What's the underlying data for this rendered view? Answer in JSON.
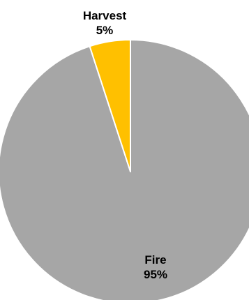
{
  "chart_data": {
    "type": "pie",
    "title": "",
    "start_angle_deg": 0,
    "direction": "clockwise",
    "slice_border_color": "#ffffff",
    "slices": [
      {
        "name": "Fire",
        "value": 95,
        "percent_label": "95%",
        "color": "#a6a6a6"
      },
      {
        "name": "Harvest",
        "value": 5,
        "percent_label": "5%",
        "color": "#ffc000"
      }
    ]
  }
}
